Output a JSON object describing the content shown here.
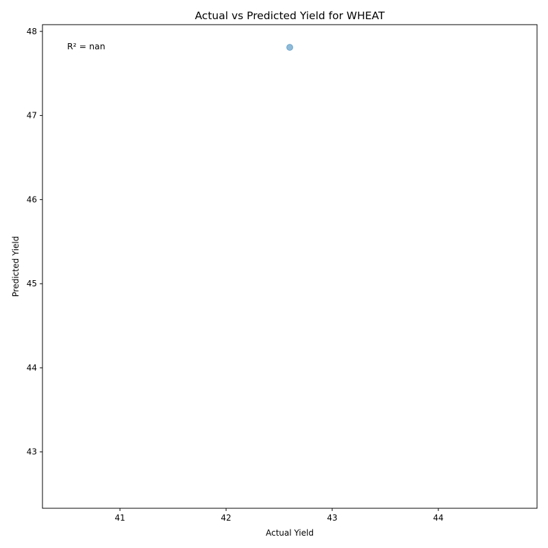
{
  "chart_data": {
    "type": "scatter",
    "title": "Actual vs Predicted Yield for WHEAT",
    "xlabel": "Actual Yield",
    "ylabel": "Predicted Yield",
    "xlim": [
      40.27,
      44.93
    ],
    "ylim": [
      42.33,
      48.08
    ],
    "xticks": [
      41,
      42,
      43,
      44
    ],
    "yticks": [
      43,
      44,
      45,
      46,
      47,
      48
    ],
    "series": [
      {
        "points": [
          {
            "x": 42.6,
            "y": 47.81
          }
        ],
        "color": "#1f77b4",
        "alpha": 0.5
      }
    ],
    "annotation": "R² = nan",
    "grid": false,
    "legend": false
  }
}
